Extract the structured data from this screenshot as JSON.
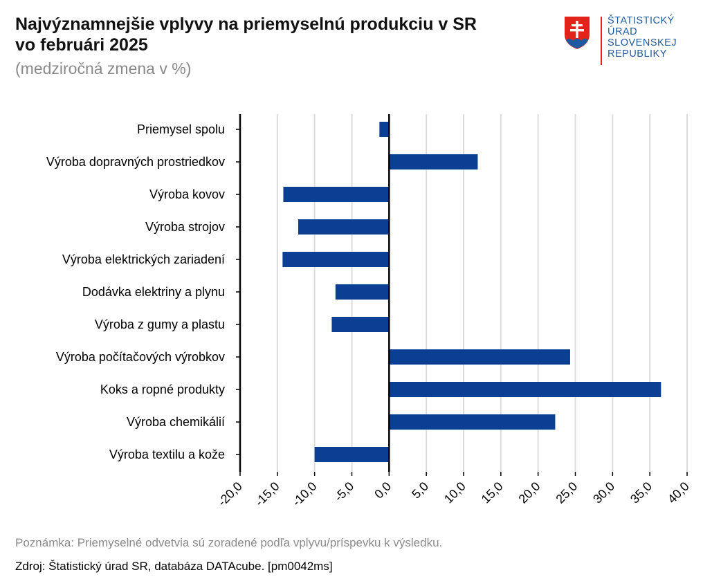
{
  "header": {
    "title_line1": "Najvýznamnejšie vplyvy na priemyselnú produkciu v SR",
    "title_line2": "vo februári 2025",
    "subtitle": "(medziročná zmena v %)"
  },
  "logo": {
    "line1": "ŠTATISTICKÝ",
    "line2": "ÚRAD",
    "line3": "SLOVENSKEJ",
    "line4": "REPUBLIKY",
    "icon": "slovak-coat-of-arms-icon"
  },
  "chart_data": {
    "type": "bar",
    "orientation": "horizontal",
    "categories": [
      "Priemysel spolu",
      "Výroba dopravných prostriedkov",
      "Výroba kovov",
      "Výroba strojov",
      "Výroba elektrických zariadení",
      "Dodávka elektriny a plynu",
      "Výroba z gumy a plastu",
      "Výroba počítačových výrobkov",
      "Koks a ropné produkty",
      "Výroba chemikálií",
      "Výroba textilu a kože"
    ],
    "values": [
      -1.3,
      11.9,
      -14.2,
      -12.2,
      -14.3,
      -7.2,
      -7.7,
      24.3,
      36.5,
      22.3,
      -10.0
    ],
    "xlim": [
      -20,
      40
    ],
    "ticks": [
      "-20,0",
      "-15,0",
      "-10,0",
      "-5,0",
      "0,0",
      "5,0",
      "10,0",
      "15,0",
      "20,0",
      "25,0",
      "30,0",
      "35,0",
      "40,0"
    ],
    "tick_values": [
      -20,
      -15,
      -10,
      -5,
      0,
      5,
      10,
      15,
      20,
      25,
      30,
      35,
      40
    ],
    "bar_color": "#0b3f94",
    "grid": true,
    "grid_color": "#dcdcdc"
  },
  "footer": {
    "note": "Poznámka: Priemyselné odvetvia sú zoradené podľa vplyvu/príspevku k výsledku.",
    "source": "Zdroj: Štatistický úrad SR, databáza DATAcube. [pm0042ms]"
  }
}
